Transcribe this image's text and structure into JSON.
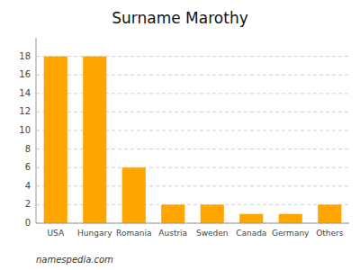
{
  "chart_data": {
    "type": "bar",
    "title": "Surname Marothy",
    "categories": [
      "USA",
      "Hungary",
      "Romania",
      "Austria",
      "Sweden",
      "Canada",
      "Germany",
      "Others"
    ],
    "values": [
      18,
      18,
      6,
      2,
      2,
      1,
      1,
      2
    ],
    "color": "#FFA500",
    "ylim": [
      0,
      20
    ],
    "yticks": [
      0,
      2,
      4,
      6,
      8,
      10,
      12,
      14,
      16,
      18
    ],
    "grid": true,
    "annotations": [
      "namespedia.com"
    ]
  }
}
